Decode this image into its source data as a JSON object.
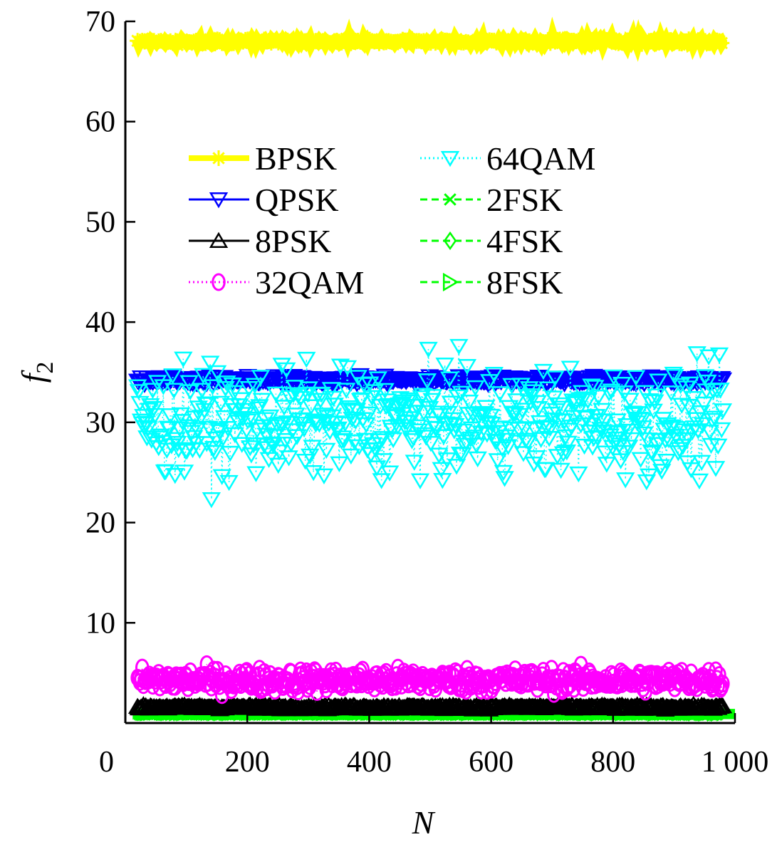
{
  "chart_data": {
    "type": "scatter",
    "xlabel": "N",
    "ylabel": "f",
    "ylabel_sub": "2",
    "xlim": [
      0,
      1000
    ],
    "ylim": [
      0,
      70
    ],
    "xticks": [
      0,
      200,
      400,
      600,
      800,
      1000
    ],
    "xtick_labels": [
      "0",
      "200",
      "400",
      "600",
      "800",
      "1 000"
    ],
    "yticks": [
      10,
      20,
      30,
      40,
      50,
      60,
      70
    ],
    "ytick_labels": [
      "10",
      "20",
      "30",
      "40",
      "50",
      "60",
      "70"
    ],
    "grid": false,
    "legend_position": "top-center",
    "series": [
      {
        "name": "BPSK",
        "color": "#ffff00",
        "marker": "asterisk",
        "line": "solid",
        "center": 68.0,
        "spread": 0.3,
        "n": 500
      },
      {
        "name": "QPSK",
        "color": "#0000ff",
        "marker": "triangle-down",
        "line": "solid",
        "center": 34.2,
        "spread": 0.4,
        "n": 500
      },
      {
        "name": "8PSK",
        "color": "#000000",
        "marker": "triangle-up",
        "line": "solid",
        "center": 1.6,
        "spread": 0.2,
        "n": 500
      },
      {
        "name": "32QAM",
        "color": "#ff00ff",
        "marker": "circle",
        "line": "dotted",
        "center": 4.3,
        "spread": 1.2,
        "n": 500
      },
      {
        "name": "64QAM",
        "color": "#00ffff",
        "marker": "triangle-down",
        "line": "dotted",
        "center": 30.0,
        "spread": 5.5,
        "n": 500
      },
      {
        "name": "2FSK",
        "color": "#00ff00",
        "marker": "x",
        "line": "dashed",
        "center": 0.9,
        "spread": 0.1,
        "n": 500
      },
      {
        "name": "4FSK",
        "color": "#00ff00",
        "marker": "diamond",
        "line": "dashed",
        "center": 0.9,
        "spread": 0.1,
        "n": 500
      },
      {
        "name": "8FSK",
        "color": "#00ff00",
        "marker": "triangle-right",
        "line": "dashed",
        "center": 0.9,
        "spread": 0.1,
        "n": 500
      }
    ]
  }
}
